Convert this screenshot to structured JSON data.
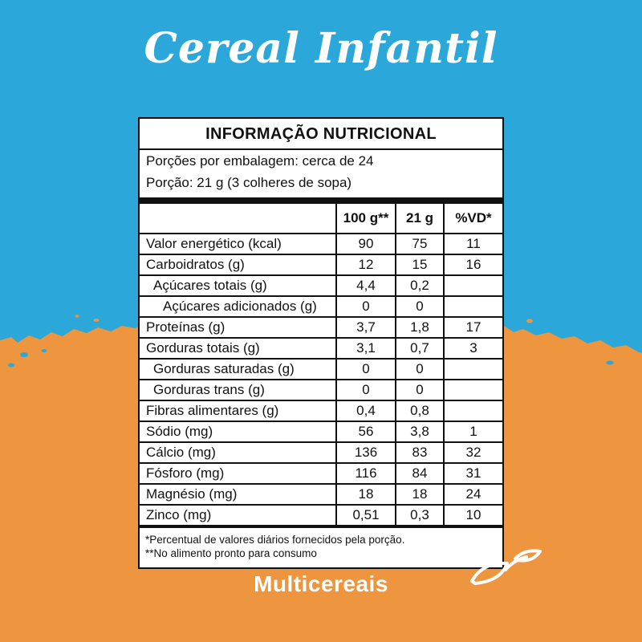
{
  "background": {
    "blue": "#2BA7DA",
    "orange": "#EE9540"
  },
  "header": {
    "title": "Cereal Infantil"
  },
  "panel": {
    "title": "INFORMAÇÃO NUTRICIONAL",
    "servings_line1": "Porções por embalagem: cerca de 24",
    "servings_line2": "Porção: 21 g (3 colheres de sopa)",
    "columns": [
      "100 g**",
      "21 g",
      "%VD*"
    ],
    "rows": [
      {
        "name": "Valor energético (kcal)",
        "v100": "90",
        "v21": "75",
        "vd": "11",
        "indent": 0
      },
      {
        "name": "Carboidratos (g)",
        "v100": "12",
        "v21": "15",
        "vd": "16",
        "indent": 0
      },
      {
        "name": "Açúcares totais (g)",
        "v100": "4,4",
        "v21": "0,2",
        "vd": "",
        "indent": 1
      },
      {
        "name": "Açúcares adicionados (g)",
        "v100": "0",
        "v21": "0",
        "vd": "",
        "indent": 2
      },
      {
        "name": "Proteínas (g)",
        "v100": "3,7",
        "v21": "1,8",
        "vd": "17",
        "indent": 0
      },
      {
        "name": "Gorduras totais (g)",
        "v100": "3,1",
        "v21": "0,7",
        "vd": "3",
        "indent": 0
      },
      {
        "name": "Gorduras saturadas (g)",
        "v100": "0",
        "v21": "0",
        "vd": "",
        "indent": 1
      },
      {
        "name": "Gorduras trans (g)",
        "v100": "0",
        "v21": "0",
        "vd": "",
        "indent": 1
      },
      {
        "name": "Fibras alimentares (g)",
        "v100": "0,4",
        "v21": "0,8",
        "vd": "",
        "indent": 0
      },
      {
        "name": "Sódio (mg)",
        "v100": "56",
        "v21": "3,8",
        "vd": "1",
        "indent": 0
      },
      {
        "name": "Cálcio (mg)",
        "v100": "136",
        "v21": "83",
        "vd": "32",
        "indent": 0
      },
      {
        "name": "Fósforo (mg)",
        "v100": "116",
        "v21": "84",
        "vd": "31",
        "indent": 0
      },
      {
        "name": "Magnésio (mg)",
        "v100": "18",
        "v21": "18",
        "vd": "24",
        "indent": 0
      },
      {
        "name": "Zinco (mg)",
        "v100": "0,51",
        "v21": "0,3",
        "vd": "10",
        "indent": 0
      }
    ],
    "footnotes": [
      "*Percentual de valores diários fornecidos pela porção.",
      "**No alimento pronto para consumo"
    ]
  },
  "footer": {
    "label": "Multicereais",
    "icon": "leaf-icon"
  }
}
